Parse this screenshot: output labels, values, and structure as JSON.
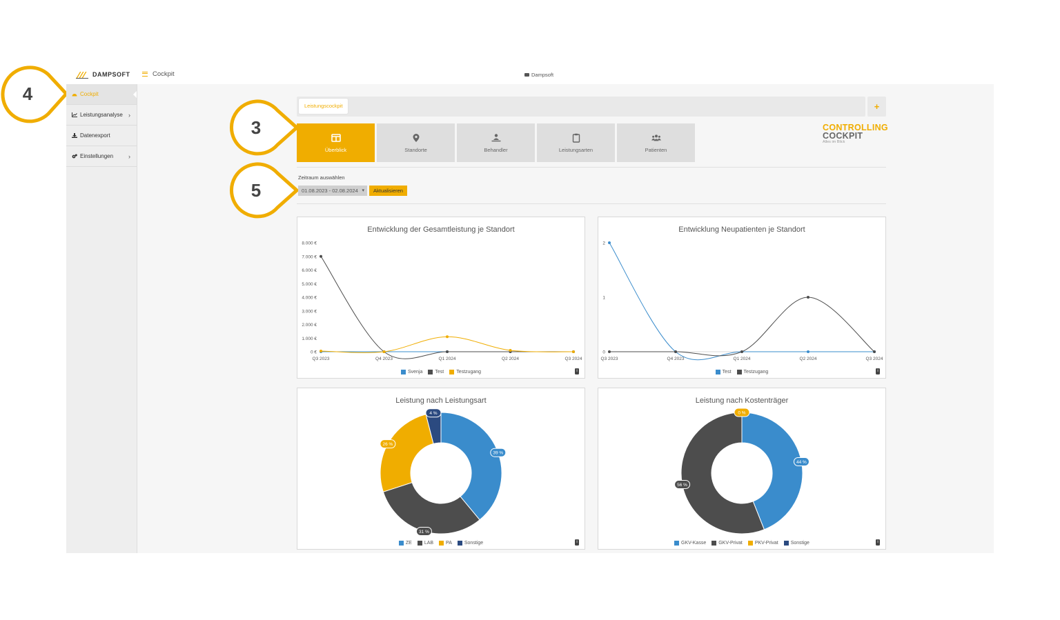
{
  "brand": {
    "name": "DAMPSOFT"
  },
  "header": {
    "title": "Cockpit",
    "company": "Dampsoft"
  },
  "sidebar": {
    "items": [
      {
        "label": "Cockpit",
        "active": true
      },
      {
        "label": "Leistungsanalyse",
        "has_submenu": true
      },
      {
        "label": "Datenexport"
      },
      {
        "label": "Einstellungen",
        "has_submenu": true
      }
    ]
  },
  "tabs": {
    "active_tab": "Leistungscockpit",
    "add_label": "+"
  },
  "nav": {
    "tiles": [
      {
        "label": "Überblick",
        "icon": "columns-icon",
        "active": true
      },
      {
        "label": "Standorte",
        "icon": "map-marker-icon"
      },
      {
        "label": "Behandler",
        "icon": "user-treatment-icon"
      },
      {
        "label": "Leistungsarten",
        "icon": "clipboard-icon"
      },
      {
        "label": "Patienten",
        "icon": "users-icon"
      }
    ]
  },
  "logo": {
    "line1": "CONTROLLING",
    "line2": "COCKPIT",
    "tagline": "Alles im Blick"
  },
  "period": {
    "label": "Zeitraum auswählen",
    "value": "01.08.2023 - 02.08.2024",
    "refresh_label": "Aktualisieren"
  },
  "callouts": {
    "c3": "3",
    "c4": "4",
    "c5": "5"
  },
  "colors": {
    "accent": "#f0ad00",
    "blue": "#3a8ccc",
    "dark": "#4d4d4d",
    "navy": "#2b4a80"
  },
  "chart_data": [
    {
      "type": "line",
      "title": "Entwicklung der Gesamtleistung je Standort",
      "categories": [
        "Q3 2023",
        "Q4 2023",
        "Q1 2024",
        "Q2 2024",
        "Q3 2024"
      ],
      "ylim": [
        0,
        8000
      ],
      "yticks": [
        "0 €",
        "1.000 €",
        "2.000 €",
        "3.000 €",
        "4.000 €",
        "5.000 €",
        "6.000 €",
        "7.000 €",
        "8.000 €"
      ],
      "series": [
        {
          "name": "Svenja",
          "color": "#3a8ccc",
          "values": [
            0,
            0,
            0,
            0,
            0
          ]
        },
        {
          "name": "Test",
          "color": "#4d4d4d",
          "values": [
            7000,
            0,
            0,
            0,
            0
          ]
        },
        {
          "name": "Testzugang",
          "color": "#f0ad00",
          "values": [
            50,
            0,
            1100,
            100,
            0
          ]
        }
      ]
    },
    {
      "type": "line",
      "title": "Entwicklung Neupatienten je Standort",
      "categories": [
        "Q3 2023",
        "Q4 2023",
        "Q1 2024",
        "Q2 2024",
        "Q3 2024"
      ],
      "ylim": [
        0,
        2
      ],
      "yticks": [
        "0",
        "1",
        "2"
      ],
      "series": [
        {
          "name": "Test",
          "color": "#3a8ccc",
          "values": [
            2,
            0,
            0,
            0,
            0
          ]
        },
        {
          "name": "Testzugang",
          "color": "#4d4d4d",
          "values": [
            0,
            0,
            0,
            1,
            0
          ]
        }
      ]
    },
    {
      "type": "pie",
      "title": "Leistung nach Leistungsart",
      "slices": [
        {
          "name": "ZE",
          "value": 39,
          "label": "39 %",
          "color": "#3a8ccc"
        },
        {
          "name": "LAB",
          "value": 31,
          "label": "31 %",
          "color": "#4d4d4d"
        },
        {
          "name": "PA",
          "value": 26,
          "label": "26 %",
          "color": "#f0ad00"
        },
        {
          "name": "Sonstige",
          "value": 4,
          "label": "4 %",
          "color": "#2b4a80"
        }
      ]
    },
    {
      "type": "pie",
      "title": "Leistung nach Kostenträger",
      "slices": [
        {
          "name": "GKV-Kasse",
          "value": 44,
          "label": "44 %",
          "color": "#3a8ccc"
        },
        {
          "name": "GKV-Privat",
          "value": 56,
          "label": "56 %",
          "color": "#4d4d4d"
        },
        {
          "name": "PKV-Privat",
          "value": 0,
          "label": "0 %",
          "color": "#f0ad00"
        },
        {
          "name": "Sonstige",
          "value": 0,
          "label": "",
          "color": "#2b4a80"
        }
      ]
    }
  ]
}
